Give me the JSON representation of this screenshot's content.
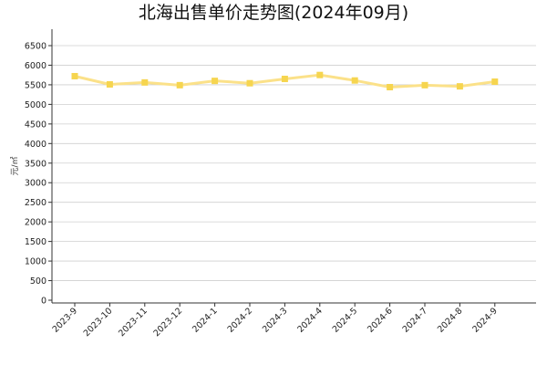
{
  "chart_data": {
    "type": "line",
    "title": "北海出售单价走势图(2024年09月)",
    "ylabel": "元/㎡",
    "categories": [
      "2023-9",
      "2023-10",
      "2023-11",
      "2023-12",
      "2024-1",
      "2024-2",
      "2024-3",
      "2024-4",
      "2024-5",
      "2024-6",
      "2024-7",
      "2024-8",
      "2024-9"
    ],
    "series": [
      {
        "values": [
          5720,
          5510,
          5560,
          5490,
          5600,
          5540,
          5650,
          5750,
          5610,
          5440,
          5490,
          5460,
          5580
        ]
      }
    ],
    "ylim": [
      0,
      6500
    ],
    "yticks": [
      0,
      500,
      1000,
      1500,
      2000,
      2500,
      3000,
      3500,
      4000,
      4500,
      5000,
      5500,
      6000,
      6500
    ],
    "grid": true,
    "line_color": "#fbe189",
    "marker_color": "#f6d54f"
  }
}
